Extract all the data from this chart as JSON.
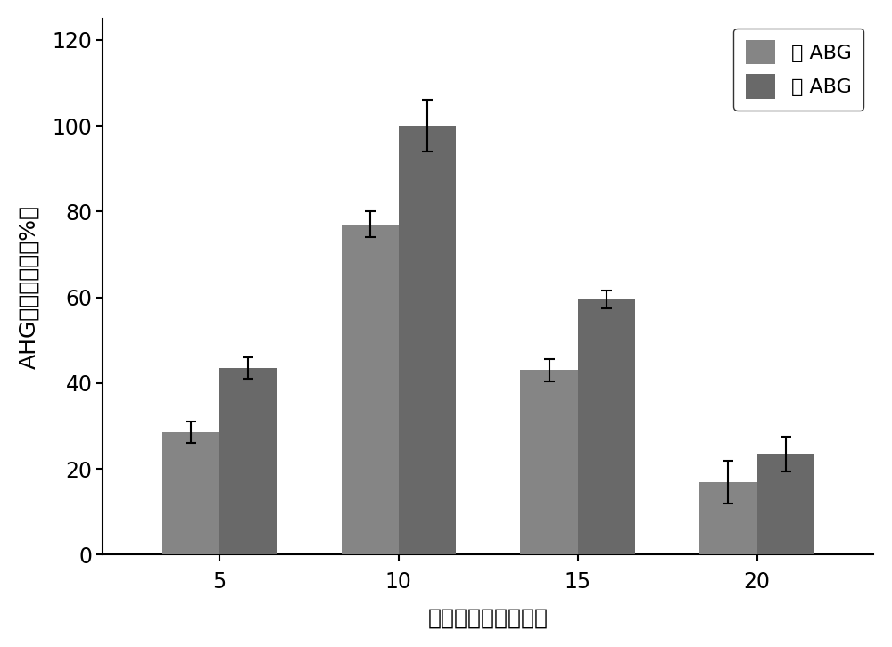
{
  "categories": [
    5,
    10,
    15,
    20
  ],
  "no_abg_values": [
    28.5,
    77.0,
    43.0,
    17.0
  ],
  "abg_values": [
    43.5,
    100.0,
    59.5,
    23.5
  ],
  "no_abg_errors": [
    2.5,
    3.0,
    2.5,
    5.0
  ],
  "abg_errors": [
    2.5,
    6.0,
    2.0,
    4.0
  ],
  "no_abg_color": "#858585",
  "abg_color": "#696969",
  "bar_width": 0.32,
  "xlabel": "预处理时间（分钟）",
  "ylabel": "AHG的相对产率（%）",
  "ylim": [
    0,
    125
  ],
  "yticks": [
    0,
    20,
    40,
    60,
    80,
    100,
    120
  ],
  "legend_labels": [
    "无 ABG",
    "有 ABG"
  ],
  "label_fontsize": 18,
  "tick_fontsize": 17,
  "legend_fontsize": 16,
  "background_color": "#ffffff"
}
